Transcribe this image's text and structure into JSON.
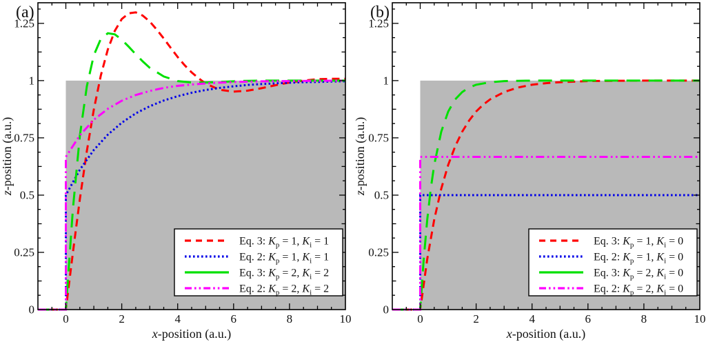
{
  "chart_data": {
    "type": "line",
    "tokens": {
      "k": "K",
      "sub_p": "p",
      "sub_i": "i",
      "equals": " = ",
      "comma": ", "
    },
    "panels": [
      {
        "panel_label": "(a)",
        "xlabel": {
          "italic": "x",
          "rest": "-position (a.u.)"
        },
        "ylabel": {
          "italic": "z",
          "rest": "-position (a.u.)"
        },
        "xlim": [
          -1,
          10
        ],
        "ylim": [
          0,
          1.34
        ],
        "x_tick_labels": [
          {
            "v": 0,
            "t": "0"
          },
          {
            "v": 2,
            "t": "2"
          },
          {
            "v": 4,
            "t": "4"
          },
          {
            "v": 6,
            "t": "6"
          },
          {
            "v": 8,
            "t": "8"
          },
          {
            "v": 10,
            "t": "10"
          }
        ],
        "y_tick_labels": [
          {
            "v": 0,
            "t": "0"
          },
          {
            "v": 0.25,
            "t": "0.25"
          },
          {
            "v": 0.5,
            "t": "0.5"
          },
          {
            "v": 0.75,
            "t": "0.75"
          },
          {
            "v": 1,
            "t": "1"
          },
          {
            "v": 1.25,
            "t": "1.25"
          }
        ],
        "grid": false,
        "setpoint_region": {
          "x": [
            0,
            10
          ],
          "y": [
            0,
            1
          ],
          "color": "#b9b9b9"
        },
        "legend": {
          "position": "lower-right",
          "items": [
            {
              "eq": "Eq. 3: ",
              "kp": "1",
              "ki": "1",
              "color": "#ff0000",
              "sample": "dashed"
            },
            {
              "eq": "Eq. 2: ",
              "kp": "1",
              "ki": "1",
              "color": "#0000e8",
              "sample": "dotted"
            },
            {
              "eq": "Eq. 3: ",
              "kp": "2",
              "ki": "2",
              "color": "#00e000",
              "sample": "solid"
            },
            {
              "eq": "Eq. 2: ",
              "kp": "2",
              "ki": "2",
              "color": "#ff00ff",
              "sample": "dash-dot-dot"
            }
          ]
        },
        "series": [
          {
            "name": "eq3-kp1-ki1",
            "color": "#ff0000",
            "dash": "dashed",
            "x": [
              -1,
              0,
              0.25,
              0.5,
              0.75,
              1,
              1.25,
              1.5,
              1.75,
              2,
              2.25,
              2.5,
              2.75,
              3,
              3.25,
              3.5,
              3.75,
              4,
              4.25,
              4.5,
              4.75,
              5,
              5.5,
              6,
              6.5,
              7,
              7.5,
              8,
              8.5,
              9,
              9.5,
              10
            ],
            "z": [
              0,
              0,
              0.248,
              0.482,
              0.693,
              0.874,
              1.022,
              1.136,
              1.217,
              1.269,
              1.294,
              1.298,
              1.284,
              1.258,
              1.223,
              1.184,
              1.143,
              1.103,
              1.067,
              1.036,
              1.01,
              0.987,
              0.96,
              0.952,
              0.956,
              0.967,
              0.98,
              0.992,
              1.0,
              1.006,
              1.008,
              1.008
            ]
          },
          {
            "name": "eq2-kp1-ki1",
            "color": "#0000e8",
            "dash": "dotted",
            "x": [
              -1,
              0,
              0,
              0.5,
              1,
              1.5,
              2,
              2.5,
              3,
              3.5,
              4,
              4.5,
              5,
              5.5,
              6,
              6.5,
              7,
              7.5,
              8,
              8.5,
              9,
              9.5,
              10
            ],
            "z": [
              0,
              0,
              0.5,
              0.611,
              0.697,
              0.764,
              0.816,
              0.857,
              0.888,
              0.913,
              0.932,
              0.947,
              0.959,
              0.968,
              0.975,
              0.981,
              0.985,
              0.988,
              0.991,
              0.993,
              0.994,
              0.996,
              0.997
            ]
          },
          {
            "name": "eq3-kp2-ki2",
            "color": "#00e000",
            "dash": "long-dash",
            "x": [
              -1,
              0,
              0.25,
              0.5,
              0.75,
              1,
              1.25,
              1.5,
              1.75,
              2,
              2.25,
              2.5,
              2.75,
              3,
              3.5,
              4,
              4.5,
              5,
              5.5,
              6,
              6.5,
              7,
              8,
              9,
              10
            ],
            "z": [
              0,
              0,
              0.438,
              0.759,
              0.976,
              1.111,
              1.182,
              1.207,
              1.202,
              1.179,
              1.148,
              1.115,
              1.084,
              1.056,
              1.018,
              0.998,
              0.992,
              0.992,
              0.994,
              0.997,
              0.999,
              1.0,
              1.0,
              1.0,
              1.0
            ]
          },
          {
            "name": "eq2-kp2-ki2",
            "color": "#ff00ff",
            "dash": "dash-dot-dot",
            "x": [
              -1,
              0,
              0,
              0.5,
              1,
              1.5,
              2,
              2.5,
              3,
              3.5,
              4,
              4.5,
              5,
              5.5,
              6,
              7,
              8,
              9,
              10
            ],
            "z": [
              0,
              0,
              0.667,
              0.761,
              0.829,
              0.877,
              0.912,
              0.937,
              0.955,
              0.968,
              0.977,
              0.983,
              0.988,
              0.991,
              0.994,
              0.997,
              0.998,
              0.999,
              1.0
            ]
          }
        ]
      },
      {
        "panel_label": "(b)",
        "xlabel": {
          "italic": "x",
          "rest": "-position (a.u.)"
        },
        "ylabel": {
          "italic": "z",
          "rest": "-position (a.u.)"
        },
        "xlim": [
          -1,
          10
        ],
        "ylim": [
          0,
          1.34
        ],
        "x_tick_labels": [
          {
            "v": 0,
            "t": "0"
          },
          {
            "v": 2,
            "t": "2"
          },
          {
            "v": 4,
            "t": "4"
          },
          {
            "v": 6,
            "t": "6"
          },
          {
            "v": 8,
            "t": "8"
          },
          {
            "v": 10,
            "t": "10"
          }
        ],
        "y_tick_labels": [
          {
            "v": 0,
            "t": "0"
          },
          {
            "v": 0.25,
            "t": "0.25"
          },
          {
            "v": 0.5,
            "t": "0.5"
          },
          {
            "v": 0.75,
            "t": "0.75"
          },
          {
            "v": 1,
            "t": "1"
          },
          {
            "v": 1.25,
            "t": "1.25"
          }
        ],
        "grid": false,
        "setpoint_region": {
          "x": [
            0,
            10
          ],
          "y": [
            0,
            1
          ],
          "color": "#b9b9b9"
        },
        "legend": {
          "position": "lower-right",
          "items": [
            {
              "eq": "Eq. 3: ",
              "kp": "1",
              "ki": "0",
              "color": "#ff0000",
              "sample": "dashed"
            },
            {
              "eq": "Eq. 2: ",
              "kp": "1",
              "ki": "0",
              "color": "#0000e8",
              "sample": "dotted"
            },
            {
              "eq": "Eq. 3: ",
              "kp": "2",
              "ki": "0",
              "color": "#00e000",
              "sample": "solid"
            },
            {
              "eq": "Eq. 2: ",
              "kp": "2",
              "ki": "0",
              "color": "#ff00ff",
              "sample": "dash-dot-dot"
            }
          ]
        },
        "series": [
          {
            "name": "eq3-kp1-ki0",
            "color": "#ff0000",
            "dash": "dashed",
            "x": [
              -1,
              0,
              0.25,
              0.5,
              0.75,
              1,
              1.25,
              1.5,
              1.75,
              2,
              2.25,
              2.5,
              3,
              3.5,
              4,
              4.5,
              5,
              6,
              7,
              8,
              9,
              10
            ],
            "z": [
              0,
              0,
              0.221,
              0.393,
              0.528,
              0.632,
              0.713,
              0.777,
              0.826,
              0.865,
              0.895,
              0.918,
              0.95,
              0.97,
              0.982,
              0.989,
              0.993,
              0.998,
              0.999,
              1.0,
              1.0,
              1.0
            ]
          },
          {
            "name": "eq2-kp1-ki0",
            "color": "#0000e8",
            "dash": "dotted",
            "x": [
              -1,
              0,
              0,
              10
            ],
            "z": [
              0,
              0,
              0.5,
              0.5
            ]
          },
          {
            "name": "eq3-kp2-ki0",
            "color": "#00e000",
            "dash": "long-dash",
            "x": [
              -1,
              0,
              0.125,
              0.25,
              0.375,
              0.5,
              0.75,
              1,
              1.25,
              1.5,
              1.75,
              2,
              2.5,
              3,
              3.5,
              4,
              5,
              6,
              8,
              10
            ],
            "z": [
              0,
              0,
              0.221,
              0.393,
              0.528,
              0.632,
              0.777,
              0.865,
              0.918,
              0.95,
              0.97,
              0.982,
              0.993,
              0.998,
              0.999,
              1.0,
              1.0,
              1.0,
              1.0,
              1.0
            ]
          },
          {
            "name": "eq2-kp2-ki0",
            "color": "#ff00ff",
            "dash": "dash-dot-dot",
            "x": [
              -1,
              0,
              0,
              10
            ],
            "z": [
              0,
              0,
              0.667,
              0.667
            ]
          }
        ]
      }
    ]
  }
}
